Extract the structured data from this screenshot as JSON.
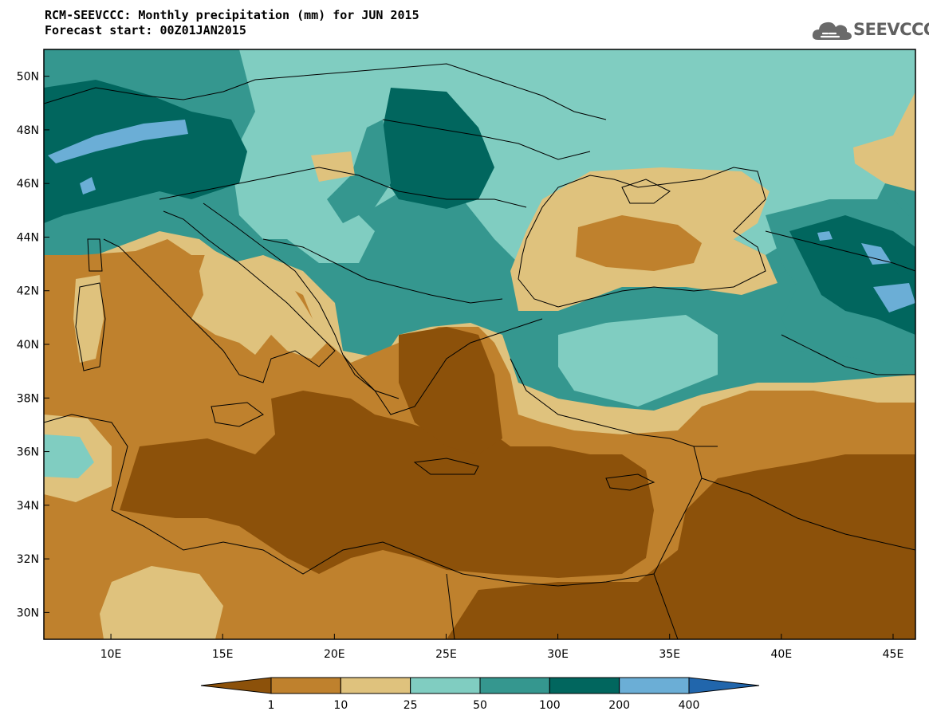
{
  "header": {
    "title": "RCM-SEEVCCC: Monthly precipitation (mm) for JUN 2015",
    "subtitle": "Forecast start: 00Z01JAN2015"
  },
  "logo": {
    "text": "SEEVCCC",
    "icon": "cloud-logo-icon"
  },
  "map": {
    "lon_range": [
      7,
      46
    ],
    "lat_range": [
      29,
      51
    ],
    "lon_ticks": [
      {
        "value": 10,
        "label": "10E"
      },
      {
        "value": 15,
        "label": "15E"
      },
      {
        "value": 20,
        "label": "20E"
      },
      {
        "value": 25,
        "label": "25E"
      },
      {
        "value": 30,
        "label": "30E"
      },
      {
        "value": 35,
        "label": "35E"
      },
      {
        "value": 40,
        "label": "40E"
      },
      {
        "value": 45,
        "label": "45E"
      }
    ],
    "lat_ticks": [
      {
        "value": 30,
        "label": "30N"
      },
      {
        "value": 32,
        "label": "32N"
      },
      {
        "value": 34,
        "label": "34N"
      },
      {
        "value": 36,
        "label": "36N"
      },
      {
        "value": 38,
        "label": "38N"
      },
      {
        "value": 40,
        "label": "40N"
      },
      {
        "value": 42,
        "label": "42N"
      },
      {
        "value": 44,
        "label": "44N"
      },
      {
        "value": 46,
        "label": "46N"
      },
      {
        "value": 48,
        "label": "48N"
      },
      {
        "value": 50,
        "label": "50N"
      }
    ]
  },
  "colorbar": {
    "colors": [
      "#8c510a",
      "#bf812d",
      "#dfc27d",
      "#80cdc1",
      "#35978f",
      "#01665e",
      "#6baed6",
      "#2166ac"
    ],
    "levels": [
      "1",
      "10",
      "25",
      "50",
      "100",
      "200",
      "400"
    ]
  }
}
